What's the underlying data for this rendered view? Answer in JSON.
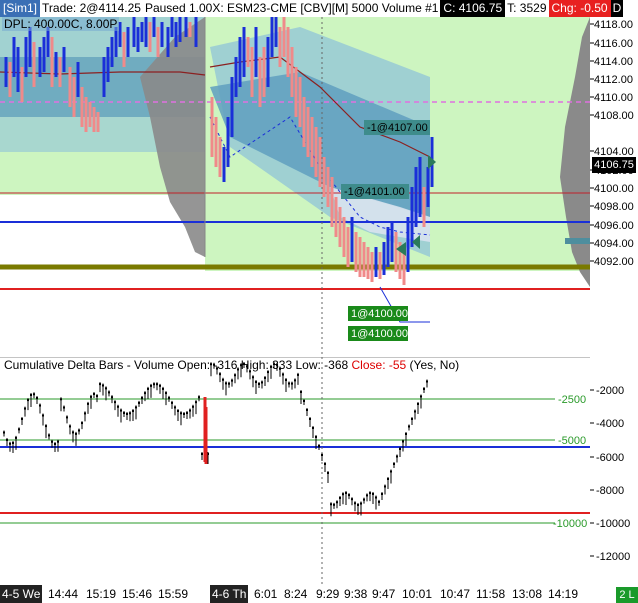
{
  "topbar": {
    "account": "[Sim1]",
    "trade": "Trade: 2@4114.25",
    "status": "Paused 1.00X: ESM23-CME [CBV][M]  5000 Volume  #1",
    "close": "C: 4106.75",
    "ticks": "T: 3529",
    "change": "Chg: -0.50",
    "d": "D"
  },
  "dpl": "DPL: 400.00C, 8.00P",
  "price_axis": {
    "labels": [
      "4118.00",
      "4116.00",
      "4114.00",
      "4112.00",
      "4110.00",
      "4108.00",
      "4106.75",
      "4104.00",
      "4102.00",
      "4100.00",
      "4098.00",
      "4096.00",
      "4094.00",
      "4092.00"
    ],
    "current": "4106.75"
  },
  "orders": [
    {
      "label": "-1@4107.00"
    },
    {
      "label": "-1@4101.00"
    },
    {
      "label": "1@4100.00"
    },
    {
      "label": "1@4100.00"
    }
  ],
  "lower": {
    "title_prefix": "Cumulative Delta Bars - Volume  Open: -316  High: 333  Low: -368  ",
    "close": "Close: -55",
    "suffix": "  (Yes, No)",
    "axis_labels": [
      "-2000",
      "-4000",
      "-6000",
      "-8000",
      "-10000",
      "-12000"
    ],
    "levels": [
      "-2500",
      "-5000",
      "-10000"
    ]
  },
  "xaxis": {
    "labels": [
      "4-5 We",
      "14:44",
      "15:19",
      "15:46",
      "15:59",
      "4-6 Th",
      "6:01",
      "8:24",
      "9:29",
      "9:38",
      "9:47",
      "10:01",
      "10:47",
      "11:58",
      "13:08",
      "14:19"
    ],
    "footer": "2 L"
  },
  "colors": {
    "green_zone": "#cdf5c0",
    "blue_band": "#6aa5c8",
    "up_bar": "#1a2fd8",
    "down_bar": "#f08a8a",
    "poc_line": "#7a7a00",
    "red_line": "#e02020",
    "blue_line": "#1a2fd8"
  }
}
